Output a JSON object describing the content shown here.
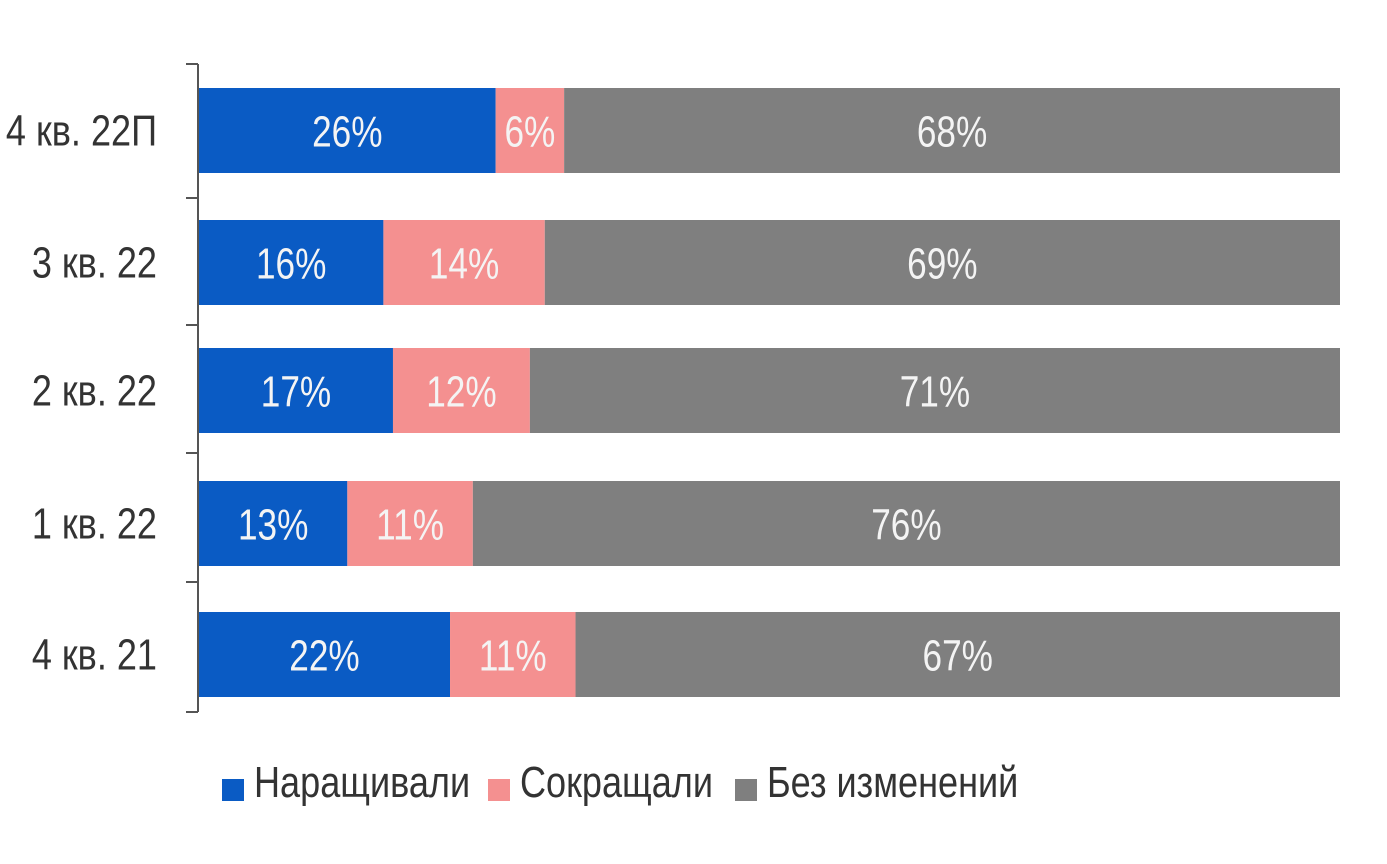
{
  "chart_data": {
    "type": "bar",
    "orientation": "horizontal",
    "stacked": true,
    "categories": [
      "4 кв. 22П",
      "3 кв. 22",
      "2 кв. 22",
      "1 кв. 22",
      "4 кв. 21"
    ],
    "series": [
      {
        "name": "Наращивали",
        "color": "#0a5bc4",
        "values": [
          26,
          16,
          17,
          13,
          22
        ],
        "labels": [
          "26%",
          "16%",
          "17%",
          "13%",
          "22%"
        ]
      },
      {
        "name": "Сокращали",
        "color": "#f49090",
        "values": [
          6,
          14,
          12,
          11,
          11
        ],
        "labels": [
          "6%",
          "14%",
          "12%",
          "11%",
          "11%"
        ]
      },
      {
        "name": "Без изменений",
        "color": "#7f7f7f",
        "values": [
          68,
          69,
          71,
          76,
          67
        ],
        "labels": [
          "68%",
          "69%",
          "71%",
          "76%",
          "67%"
        ]
      }
    ],
    "xlim": [
      0,
      100
    ],
    "legend_position": "bottom",
    "grid": false
  }
}
